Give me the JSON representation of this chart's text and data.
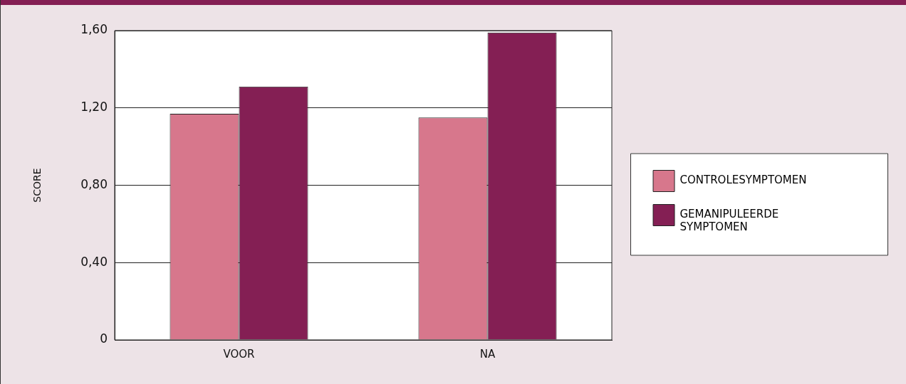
{
  "chart_data": {
    "type": "bar",
    "ylabel": "SCORE",
    "categories": [
      "VOOR",
      "NA"
    ],
    "series": [
      {
        "name": "CONTROLESYMPTOMEN",
        "color": "#d7778c",
        "values": [
          1.17,
          1.15
        ]
      },
      {
        "name": "GEMANIPULEERDE SYMPTOMEN",
        "color": "#841f54",
        "values": [
          1.31,
          1.59
        ]
      }
    ],
    "ylim": [
      0,
      1.6
    ],
    "yticks": [
      {
        "value": 0,
        "label": "0"
      },
      {
        "value": 0.4,
        "label": "0,40"
      },
      {
        "value": 0.8,
        "label": "0,80"
      },
      {
        "value": 1.2,
        "label": "1,20"
      },
      {
        "value": 1.6,
        "label": "1,60"
      }
    ],
    "grid": "y",
    "legend": "right"
  }
}
